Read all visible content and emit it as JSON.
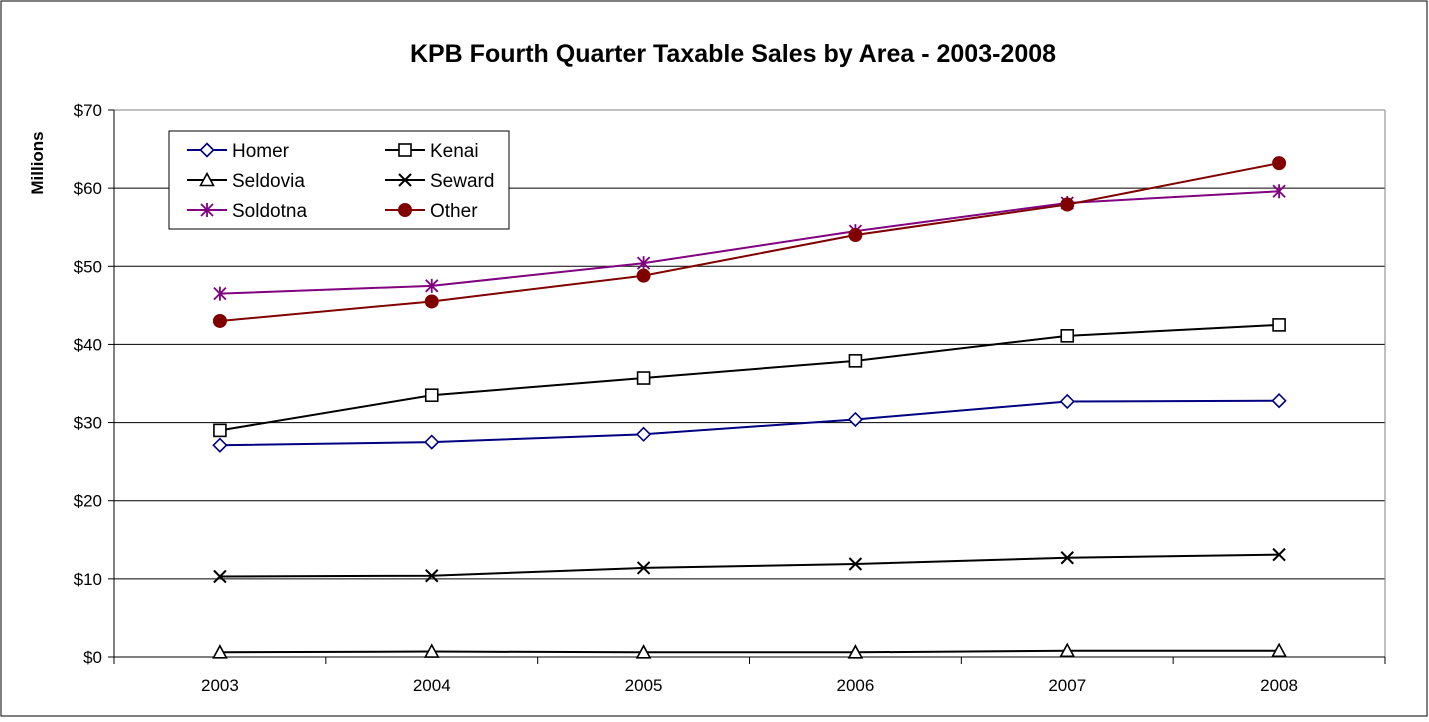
{
  "chart_data": {
    "type": "line",
    "title": "KPB Fourth Quarter Taxable Sales by Area - 2003-2008",
    "ylabel": "Millions",
    "xlabel": "",
    "categories": [
      "2003",
      "2004",
      "2005",
      "2006",
      "2007",
      "2008"
    ],
    "ylim": [
      0,
      70
    ],
    "yticks": [
      0,
      10,
      20,
      30,
      40,
      50,
      60,
      70
    ],
    "ytick_labels": [
      "$0",
      "$10",
      "$20",
      "$30",
      "$40",
      "$50",
      "$60",
      "$70"
    ],
    "grid": true,
    "legend_position": "top-left",
    "series": [
      {
        "name": "Homer",
        "color": "#000080",
        "marker": "diamond-open",
        "values": [
          27.1,
          27.5,
          28.5,
          30.4,
          32.7,
          32.8
        ]
      },
      {
        "name": "Kenai",
        "color": "#000000",
        "marker": "square-open",
        "values": [
          29.0,
          33.5,
          35.7,
          37.9,
          41.1,
          42.5
        ]
      },
      {
        "name": "Seldovia",
        "color": "#000000",
        "marker": "triangle-open",
        "values": [
          0.6,
          0.7,
          0.6,
          0.6,
          0.8,
          0.8
        ]
      },
      {
        "name": "Seward",
        "color": "#000000",
        "marker": "x",
        "values": [
          10.3,
          10.4,
          11.4,
          11.9,
          12.7,
          13.1
        ]
      },
      {
        "name": "Soldotna",
        "color": "#800080",
        "marker": "asterisk",
        "values": [
          46.5,
          47.5,
          50.4,
          54.5,
          58.1,
          59.6
        ]
      },
      {
        "name": "Other",
        "color": "#800000",
        "marker": "circle-filled",
        "values": [
          43.0,
          45.5,
          48.8,
          54.0,
          57.9,
          63.2
        ]
      }
    ]
  }
}
